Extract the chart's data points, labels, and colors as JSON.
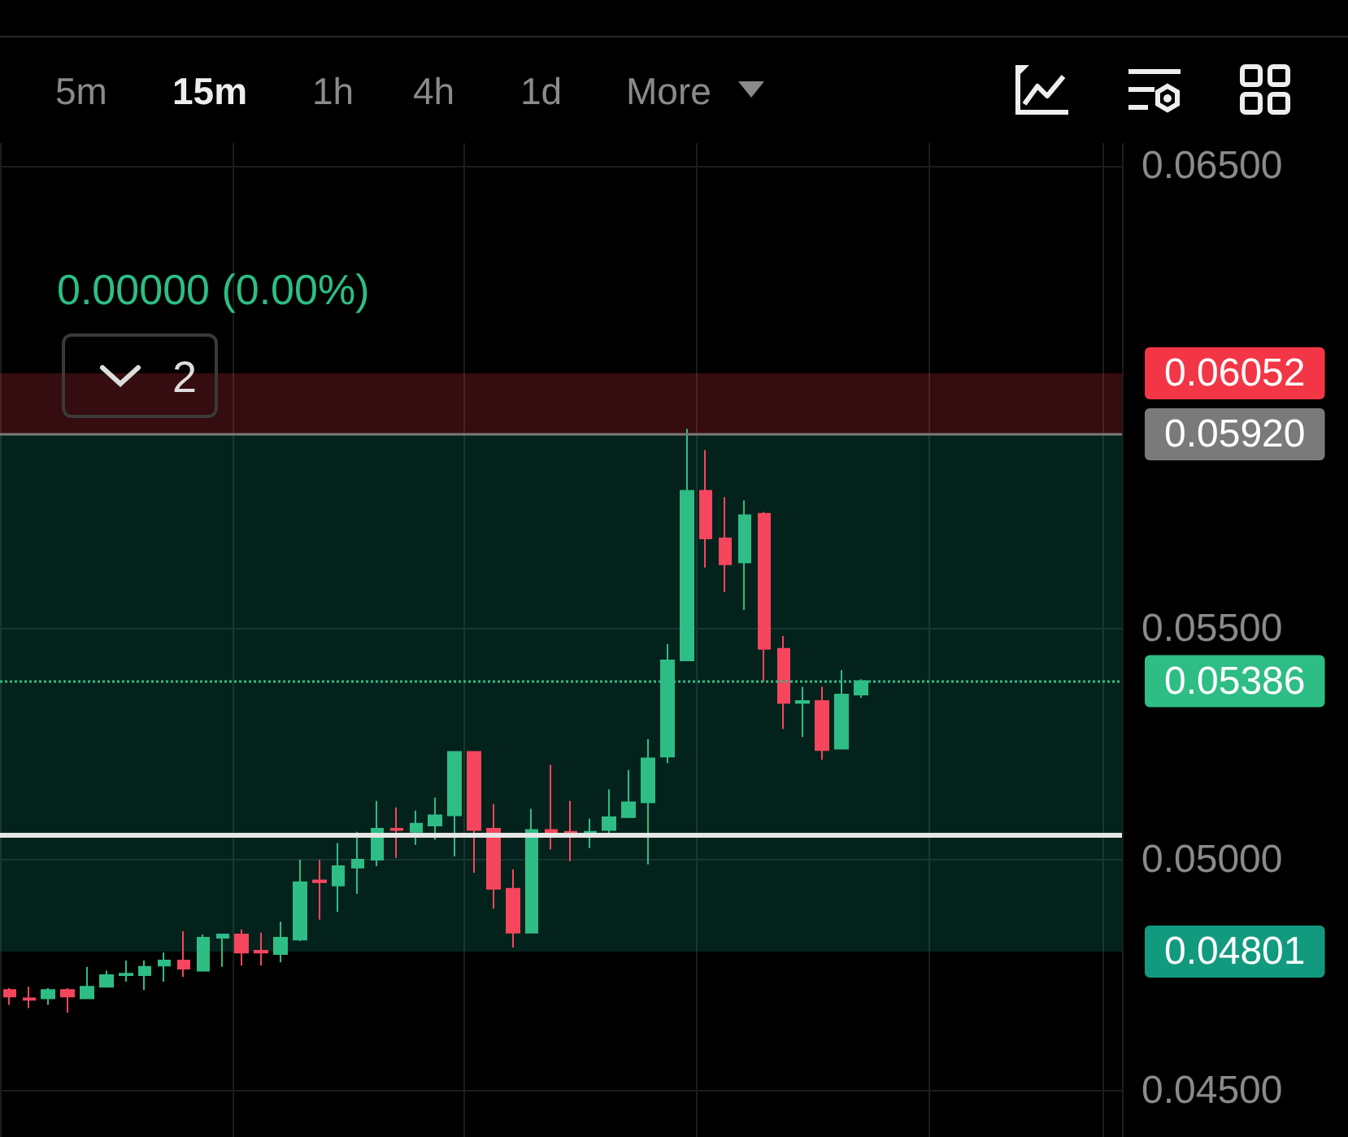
{
  "chart_data": {
    "type": "candlestick",
    "subtitle": "0.00000 (0.00%)",
    "annotations": [
      "5m",
      "15m",
      "1h",
      "4h",
      "1d",
      "More",
      "2"
    ],
    "categories": [
      null,
      null,
      null,
      null,
      null,
      null,
      null,
      null,
      null,
      null,
      null,
      null,
      null,
      null,
      null,
      null,
      null,
      null,
      null,
      null,
      null,
      null,
      null,
      null,
      null,
      null,
      null,
      null,
      null,
      null,
      null,
      null,
      null,
      null,
      null,
      null,
      null,
      null,
      null,
      null,
      null,
      null,
      null,
      null,
      null,
      null,
      null,
      null,
      null,
      null,
      null,
      null,
      null,
      null,
      null,
      null,
      null,
      null
    ],
    "ohlc": [
      [
        0.04718,
        0.04722,
        0.04686,
        0.04704
      ],
      [
        0.047,
        0.04725,
        0.04679,
        0.04697
      ],
      [
        0.047,
        0.04722,
        0.04686,
        0.04718
      ],
      [
        0.04718,
        0.04722,
        0.04669,
        0.04704
      ],
      [
        0.047,
        0.04768,
        0.047,
        0.04725
      ],
      [
        0.04725,
        0.0476,
        0.04725,
        0.0475
      ],
      [
        0.0475,
        0.04782,
        0.04736,
        0.04753
      ],
      [
        0.0475,
        0.04782,
        0.04718,
        0.04768
      ],
      [
        0.04771,
        0.04799,
        0.04736,
        0.04782
      ],
      [
        0.04782,
        0.04845,
        0.04746,
        0.04764
      ],
      [
        0.0476,
        0.04838,
        0.0476,
        0.04831
      ],
      [
        0.04831,
        0.04838,
        0.04768,
        0.04838
      ],
      [
        0.04838,
        0.04849,
        0.04771,
        0.04799
      ],
      [
        0.04803,
        0.04842,
        0.04771,
        0.04799
      ],
      [
        0.04796,
        0.04866,
        0.04778,
        0.04831
      ],
      [
        0.04827,
        0.05,
        0.04824,
        0.04951
      ],
      [
        0.04955,
        0.05,
        0.0487,
        0.04951
      ],
      [
        0.04944,
        0.05036,
        0.04887,
        0.04986
      ],
      [
        0.04983,
        0.0506,
        0.04926,
        0.05
      ],
      [
        0.05,
        0.05127,
        0.04986,
        0.05067
      ],
      [
        0.05067,
        0.05113,
        0.05004,
        0.05064
      ],
      [
        0.0506,
        0.05106,
        0.05032,
        0.05078
      ],
      [
        0.05074,
        0.05134,
        0.05043,
        0.05096
      ],
      [
        0.05096,
        0.05233,
        0.05007,
        0.05233
      ],
      [
        0.05233,
        0.05233,
        0.04972,
        0.05064
      ],
      [
        0.05067,
        0.0512,
        0.04894,
        0.04937
      ],
      [
        0.04937,
        0.04979,
        0.0481,
        0.04842
      ],
      [
        0.04842,
        0.0511,
        0.04842,
        0.05064
      ],
      [
        0.05064,
        0.05205,
        0.05022,
        0.05057
      ],
      [
        0.0506,
        0.05127,
        0.04997,
        0.05057
      ],
      [
        0.05057,
        0.05089,
        0.05025,
        0.0506
      ],
      [
        0.05064,
        0.05152,
        0.05057,
        0.05092
      ],
      [
        0.05092,
        0.05194,
        0.05092,
        0.05124
      ],
      [
        0.05124,
        0.05261,
        0.0499,
        0.05219
      ],
      [
        0.05223,
        0.05466,
        0.05209,
        0.05431
      ],
      [
        0.05431,
        0.05932,
        0.05431,
        0.05798
      ],
      [
        0.05798,
        0.05886,
        0.05632,
        0.05695
      ],
      [
        0.05695,
        0.05784,
        0.05579,
        0.05639
      ],
      [
        0.05643,
        0.05777,
        0.0554,
        0.05745
      ],
      [
        0.05748,
        0.05752,
        0.05385,
        0.05456
      ],
      [
        0.05456,
        0.05484,
        0.05283,
        0.05339
      ],
      [
        0.05339,
        0.05374,
        0.05265,
        0.05343
      ],
      [
        0.05343,
        0.05374,
        0.05216,
        0.05237
      ],
      [
        0.0524,
        0.0541,
        0.0524,
        0.05357
      ],
      [
        0.05357,
        0.0539,
        0.0535,
        0.05386
      ],
      null,
      null,
      null,
      null,
      null,
      null,
      null,
      null,
      null,
      null,
      null,
      null,
      null
    ],
    "colors": [
      "#f6465d",
      "#f6465d",
      "#2ebd85",
      "#f6465d",
      "#2ebd85",
      "#2ebd85",
      "#2ebd85",
      "#2ebd85",
      "#2ebd85",
      "#f6465d",
      "#2ebd85",
      "#2ebd85",
      "#f6465d",
      "#f6465d",
      "#2ebd85",
      "#2ebd85",
      "#f6465d",
      "#2ebd85",
      "#2ebd85",
      "#2ebd85",
      "#f6465d",
      "#2ebd85",
      "#2ebd85",
      "#2ebd85",
      "#f6465d",
      "#f6465d",
      "#f6465d",
      "#2ebd85",
      "#f6465d",
      "#f6465d",
      "#2ebd85",
      "#2ebd85",
      "#2ebd85",
      "#2ebd85",
      "#2ebd85",
      "#2ebd85",
      "#f6465d",
      "#f6465d",
      "#2ebd85",
      "#f6465d",
      "#f6465d",
      "#2ebd85",
      "#f6465d",
      "#2ebd85",
      "#2ebd85",
      null,
      null,
      null,
      null,
      null,
      null,
      null,
      null,
      null,
      null,
      null,
      null,
      null
    ],
    "ylim": [
      0.044,
      0.0655
    ],
    "yticks": [
      {
        "value": 0.045,
        "label": "0.04500"
      },
      {
        "value": 0.05,
        "label": "0.05000"
      },
      {
        "value": 0.055,
        "label": "0.05500"
      },
      {
        "value": 0.065,
        "label": "0.06500"
      }
    ],
    "bands": [
      {
        "axis": "y",
        "from": 0.0592,
        "to": 0.06052,
        "label": "0.06052",
        "color": "#f23645"
      },
      {
        "axis": "y",
        "from": 0.0592,
        "to": 0.04801,
        "label": "0.04801",
        "color": "#129a7f"
      }
    ],
    "ref_lines": [
      {
        "axis": "y",
        "value": 0.0592,
        "label": "0.05920",
        "color": "#7a7a7a",
        "line_style": "solid"
      },
      {
        "axis": "y",
        "value": 0.05386,
        "label": "0.05386",
        "color": "#2ebd85",
        "line_style": "dotted"
      },
      {
        "axis": "y",
        "value": 0.05053,
        "color": "#e6e6e6",
        "line_style": "solid"
      }
    ],
    "grid": true
  }
}
